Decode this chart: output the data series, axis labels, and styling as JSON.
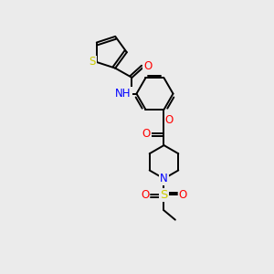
{
  "background_color": "#ebebeb",
  "atom_colors": {
    "C": "#000000",
    "N": "#0000ff",
    "O": "#ff0000",
    "S_thio": "#cccc00",
    "S_sulf": "#cccc00"
  },
  "figure_size": [
    3.0,
    3.0
  ],
  "dpi": 100,
  "xlim": [
    0,
    10
  ],
  "ylim": [
    0,
    10
  ]
}
